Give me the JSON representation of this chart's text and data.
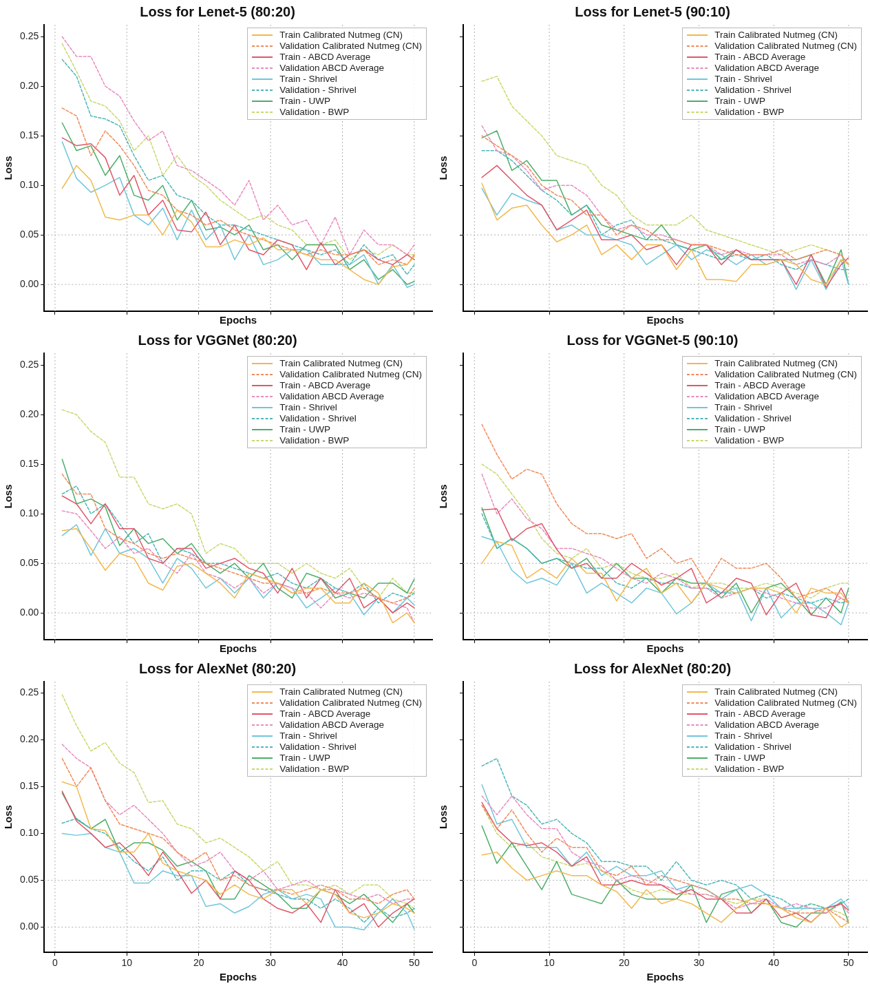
{
  "chart_data": [
    {
      "type": "line",
      "title": "Loss for Lenet-5 (80:20)",
      "xlabel": "Epochs",
      "ylabel": "Loss",
      "legend": "top right",
      "marker": "none",
      "grid": "x",
      "tick_labels": "y",
      "xlim": [
        -1.5,
        52.5
      ],
      "xticks": [
        0,
        10,
        20,
        30,
        40,
        50
      ],
      "ylim": [
        -0.027,
        0.262
      ],
      "yticks": [
        {
          "value": 0,
          "label": "0.00"
        },
        0.05,
        {
          "value": 0.1,
          "label": "0.10"
        },
        0.15,
        {
          "value": 0.2,
          "label": "0.20"
        },
        0.25
      ],
      "ref_lines": [
        {
          "axis": "y",
          "value": 0,
          "color": "#b0b0b0",
          "line_style": "dotted"
        },
        {
          "axis": "y",
          "value": 0.05,
          "color": "#b0b0b0",
          "line_style": "dotted"
        }
      ],
      "x": [
        1,
        3,
        5,
        7,
        9,
        11,
        13,
        15,
        17,
        19,
        21,
        23,
        25,
        27,
        29,
        31,
        33,
        35,
        37,
        39,
        41,
        43,
        45,
        47,
        49,
        50
      ],
      "series": [
        {
          "name": "Train Calibrated Nutmeg (CN)",
          "color": "#f2b84b",
          "line_style": "solid",
          "values": [
            0.097,
            0.12,
            0.105,
            0.068,
            0.065,
            0.07,
            0.07,
            0.05,
            0.075,
            0.063,
            0.038,
            0.038,
            0.045,
            0.04,
            0.047,
            0.035,
            0.035,
            0.03,
            0.025,
            0.025,
            0.015,
            0.005,
            0.0,
            0.018,
            0.02,
            0.028
          ]
        },
        {
          "name": "Validation Calibrated Nutmeg (CN)",
          "color": "#ef8a5a",
          "line_style": "dashed",
          "values": [
            0.178,
            0.17,
            0.13,
            0.155,
            0.14,
            0.12,
            0.095,
            0.09,
            0.075,
            0.07,
            0.06,
            0.065,
            0.055,
            0.05,
            0.045,
            0.04,
            0.035,
            0.03,
            0.035,
            0.03,
            0.03,
            0.035,
            0.02,
            0.025,
            0.02,
            0.03
          ]
        },
        {
          "name": "Train - ABCD Average",
          "color": "#e0566a",
          "line_style": "solid",
          "values": [
            0.148,
            0.14,
            0.142,
            0.128,
            0.09,
            0.11,
            0.07,
            0.085,
            0.055,
            0.053,
            0.073,
            0.04,
            0.06,
            0.035,
            0.03,
            0.045,
            0.04,
            0.015,
            0.042,
            0.02,
            0.03,
            0.035,
            0.025,
            0.02,
            0.03,
            0.025
          ]
        },
        {
          "name": "Validation ABCD Average",
          "color": "#e88bbd",
          "line_style": "dashed",
          "values": [
            0.25,
            0.23,
            0.23,
            0.2,
            0.19,
            0.165,
            0.145,
            0.155,
            0.12,
            0.115,
            0.105,
            0.095,
            0.08,
            0.105,
            0.065,
            0.08,
            0.06,
            0.065,
            0.04,
            0.068,
            0.03,
            0.055,
            0.04,
            0.04,
            0.03,
            0.04
          ]
        },
        {
          "name": "Train - Shrivel",
          "color": "#6ec6dc",
          "line_style": "solid",
          "values": [
            0.144,
            0.107,
            0.093,
            0.1,
            0.108,
            0.07,
            0.06,
            0.077,
            0.045,
            0.075,
            0.045,
            0.06,
            0.025,
            0.05,
            0.02,
            0.025,
            0.035,
            0.035,
            0.02,
            0.02,
            0.02,
            0.03,
            0.0,
            0.02,
            -0.003,
            0.0
          ]
        },
        {
          "name": "Validation - Shrivel",
          "color": "#4db6b8",
          "line_style": "dashed",
          "values": [
            0.227,
            0.21,
            0.17,
            0.167,
            0.16,
            0.13,
            0.105,
            0.11,
            0.09,
            0.085,
            0.07,
            0.06,
            0.06,
            0.055,
            0.05,
            0.045,
            0.04,
            0.035,
            0.03,
            0.035,
            0.02,
            0.04,
            0.025,
            0.03,
            0.01,
            0.02
          ]
        },
        {
          "name": "Train - UWP",
          "color": "#4cae6a",
          "line_style": "solid",
          "values": [
            0.163,
            0.135,
            0.14,
            0.11,
            0.13,
            0.09,
            0.085,
            0.1,
            0.065,
            0.085,
            0.055,
            0.058,
            0.05,
            0.06,
            0.035,
            0.04,
            0.025,
            0.04,
            0.04,
            0.04,
            0.015,
            0.025,
            0.005,
            0.015,
            0.0,
            0.003
          ]
        },
        {
          "name": "Validation - BWP",
          "color": "#c8d86c",
          "line_style": "dashed",
          "values": [
            0.243,
            0.215,
            0.185,
            0.18,
            0.165,
            0.135,
            0.15,
            0.11,
            0.13,
            0.11,
            0.1,
            0.085,
            0.075,
            0.065,
            0.07,
            0.06,
            0.055,
            0.04,
            0.04,
            0.045,
            0.025,
            0.035,
            0.03,
            0.04,
            0.03,
            0.03
          ]
        }
      ]
    },
    {
      "type": "line",
      "title": "Loss for Lenet-5 (90:10)",
      "xlabel": "Epochs",
      "ylabel": "Loss",
      "legend": "top right",
      "marker": "none",
      "grid": "x",
      "tick_labels": false,
      "xlim": [
        -1.5,
        52.5
      ],
      "xticks": [
        0,
        10,
        20,
        30,
        40,
        50
      ],
      "ylim": [
        -0.027,
        0.262
      ],
      "yticks": [
        0,
        0.05,
        0.1,
        0.15,
        0.2,
        0.25
      ],
      "ref_lines": [
        {
          "axis": "y",
          "value": 0,
          "color": "#b0b0b0",
          "line_style": "dotted"
        },
        {
          "axis": "y",
          "value": 0.05,
          "color": "#b0b0b0",
          "line_style": "dotted"
        }
      ],
      "x": [
        1,
        3,
        5,
        7,
        9,
        11,
        13,
        15,
        17,
        19,
        21,
        23,
        25,
        27,
        29,
        31,
        33,
        35,
        37,
        39,
        41,
        43,
        45,
        47,
        49,
        50
      ],
      "series": [
        {
          "name": "Train Calibrated Nutmeg (CN)",
          "color": "#f2b84b",
          "line_style": "solid",
          "values": [
            0.102,
            0.065,
            0.077,
            0.08,
            0.06,
            0.043,
            0.05,
            0.06,
            0.03,
            0.04,
            0.025,
            0.04,
            0.04,
            0.015,
            0.035,
            0.005,
            0.005,
            0.003,
            0.02,
            0.02,
            0.025,
            0.02,
            0.005,
            0.0,
            0.025,
            0.02
          ]
        },
        {
          "name": "Validation Calibrated Nutmeg (CN)",
          "color": "#ef8a5a",
          "line_style": "dashed",
          "values": [
            0.15,
            0.14,
            0.13,
            0.12,
            0.1,
            0.09,
            0.085,
            0.07,
            0.07,
            0.05,
            0.06,
            0.055,
            0.045,
            0.045,
            0.04,
            0.04,
            0.035,
            0.03,
            0.03,
            0.03,
            0.035,
            0.025,
            0.03,
            0.035,
            0.03,
            0.02
          ]
        },
        {
          "name": "Train - ABCD Average",
          "color": "#e0566a",
          "line_style": "solid",
          "values": [
            0.108,
            0.12,
            0.105,
            0.09,
            0.08,
            0.055,
            0.065,
            0.075,
            0.045,
            0.045,
            0.05,
            0.035,
            0.04,
            0.02,
            0.04,
            0.04,
            0.02,
            0.035,
            0.025,
            0.025,
            0.025,
            0.0,
            0.03,
            -0.003,
            0.02,
            0.027
          ]
        },
        {
          "name": "Validation ABCD Average",
          "color": "#e88bbd",
          "line_style": "dashed",
          "values": [
            0.16,
            0.135,
            0.13,
            0.115,
            0.095,
            0.1,
            0.1,
            0.09,
            0.07,
            0.055,
            0.06,
            0.05,
            0.05,
            0.045,
            0.04,
            0.04,
            0.03,
            0.035,
            0.03,
            0.03,
            0.03,
            0.02,
            0.025,
            0.02,
            0.03,
            0.02
          ]
        },
        {
          "name": "Train - Shrivel",
          "color": "#6ec6dc",
          "line_style": "solid",
          "values": [
            0.097,
            0.07,
            0.092,
            0.085,
            0.08,
            0.055,
            0.06,
            0.05,
            0.05,
            0.045,
            0.04,
            0.02,
            0.03,
            0.04,
            0.025,
            0.035,
            0.03,
            0.02,
            0.03,
            0.02,
            0.025,
            -0.005,
            0.025,
            -0.005,
            0.025,
            0.0
          ]
        },
        {
          "name": "Validation - Shrivel",
          "color": "#4db6b8",
          "line_style": "dashed",
          "values": [
            0.135,
            0.135,
            0.125,
            0.11,
            0.095,
            0.085,
            0.07,
            0.08,
            0.05,
            0.06,
            0.065,
            0.045,
            0.045,
            0.04,
            0.035,
            0.03,
            0.025,
            0.03,
            0.025,
            0.03,
            0.02,
            0.015,
            0.025,
            0.02,
            0.015,
            0.015
          ]
        },
        {
          "name": "Train - UWP",
          "color": "#4cae6a",
          "line_style": "solid",
          "values": [
            0.148,
            0.155,
            0.115,
            0.125,
            0.105,
            0.105,
            0.07,
            0.08,
            0.06,
            0.055,
            0.05,
            0.045,
            0.06,
            0.04,
            0.035,
            0.04,
            0.025,
            0.035,
            0.025,
            0.025,
            0.025,
            0.025,
            0.03,
            0.0,
            0.035,
            0.0
          ]
        },
        {
          "name": "Validation - BWP",
          "color": "#c8d86c",
          "line_style": "dashed",
          "values": [
            0.205,
            0.21,
            0.18,
            0.165,
            0.15,
            0.13,
            0.125,
            0.12,
            0.1,
            0.09,
            0.07,
            0.06,
            0.06,
            0.06,
            0.07,
            0.055,
            0.05,
            0.045,
            0.04,
            0.035,
            0.03,
            0.035,
            0.04,
            0.035,
            0.03,
            0.02
          ]
        }
      ]
    },
    {
      "type": "line",
      "title": "Loss for VGGNet (80:20)",
      "xlabel": "Epochs",
      "ylabel": "Loss",
      "legend": "top right",
      "marker": "none",
      "grid": "x",
      "tick_labels": "y",
      "xlim": [
        -1.5,
        52.5
      ],
      "xticks": [
        0,
        10,
        20,
        30,
        40,
        50
      ],
      "ylim": [
        -0.027,
        0.262
      ],
      "yticks": [
        {
          "value": 0,
          "label": "0.00"
        },
        0.05,
        {
          "value": 0.1,
          "label": "0.10"
        },
        0.15,
        {
          "value": 0.2,
          "label": "0.20"
        },
        0.25
      ],
      "ref_lines": [
        {
          "axis": "y",
          "value": 0,
          "color": "#b0b0b0",
          "line_style": "dotted"
        },
        {
          "axis": "y",
          "value": 0.05,
          "color": "#b0b0b0",
          "line_style": "dotted"
        }
      ],
      "x": [
        1,
        3,
        5,
        7,
        9,
        11,
        13,
        15,
        17,
        19,
        21,
        23,
        25,
        27,
        29,
        31,
        33,
        35,
        37,
        39,
        41,
        43,
        45,
        47,
        49,
        50
      ],
      "series": [
        {
          "name": "Train Calibrated Nutmeg (CN)",
          "color": "#f2b84b",
          "line_style": "solid",
          "values": [
            0.083,
            0.085,
            0.065,
            0.043,
            0.06,
            0.055,
            0.03,
            0.023,
            0.047,
            0.05,
            0.04,
            0.03,
            0.015,
            0.04,
            0.035,
            0.03,
            0.02,
            0.025,
            0.025,
            0.01,
            0.01,
            0.03,
            0.02,
            -0.01,
            0.0,
            -0.01
          ]
        },
        {
          "name": "Validation Calibrated Nutmeg (CN)",
          "color": "#ef8a5a",
          "line_style": "dashed",
          "values": [
            0.14,
            0.12,
            0.12,
            0.085,
            0.075,
            0.07,
            0.06,
            0.055,
            0.06,
            0.055,
            0.05,
            0.045,
            0.04,
            0.035,
            0.03,
            0.03,
            0.02,
            0.02,
            0.025,
            0.02,
            0.02,
            0.025,
            0.015,
            0.01,
            0.015,
            0.025
          ]
        },
        {
          "name": "Train - ABCD Average",
          "color": "#e0566a",
          "line_style": "solid",
          "values": [
            0.118,
            0.11,
            0.09,
            0.11,
            0.085,
            0.085,
            0.055,
            0.05,
            0.065,
            0.065,
            0.045,
            0.05,
            0.055,
            0.045,
            0.04,
            0.02,
            0.045,
            0.015,
            0.035,
            0.02,
            0.035,
            0.005,
            0.015,
            0.0,
            0.01,
            0.005
          ]
        },
        {
          "name": "Validation ABCD Average",
          "color": "#e88bbd",
          "line_style": "dashed",
          "values": [
            0.103,
            0.1,
            0.083,
            0.065,
            0.077,
            0.06,
            0.065,
            0.05,
            0.04,
            0.06,
            0.04,
            0.035,
            0.025,
            0.035,
            0.02,
            0.03,
            0.025,
            0.02,
            0.005,
            0.02,
            0.015,
            0.02,
            0.015,
            0.01,
            0.005,
            -0.01
          ]
        },
        {
          "name": "Train - Shrivel",
          "color": "#6ec6dc",
          "line_style": "solid",
          "values": [
            0.078,
            0.089,
            0.058,
            0.085,
            0.06,
            0.065,
            0.055,
            0.03,
            0.055,
            0.045,
            0.025,
            0.035,
            0.02,
            0.035,
            0.015,
            0.03,
            0.025,
            0.005,
            0.015,
            0.025,
            0.02,
            -0.002,
            0.015,
            0.0,
            0.015,
            0.008
          ]
        },
        {
          "name": "Validation - Shrivel",
          "color": "#4db6b8",
          "line_style": "dashed",
          "values": [
            0.12,
            0.128,
            0.1,
            0.11,
            0.09,
            0.07,
            0.08,
            0.05,
            0.065,
            0.06,
            0.05,
            0.05,
            0.045,
            0.04,
            0.035,
            0.04,
            0.03,
            0.025,
            0.035,
            0.025,
            0.02,
            0.03,
            0.01,
            0.02,
            0.015,
            0.02
          ]
        },
        {
          "name": "Train - UWP",
          "color": "#4cae6a",
          "line_style": "solid",
          "values": [
            0.155,
            0.11,
            0.115,
            0.107,
            0.068,
            0.085,
            0.07,
            0.075,
            0.06,
            0.07,
            0.05,
            0.04,
            0.05,
            0.035,
            0.05,
            0.025,
            0.015,
            0.04,
            0.035,
            0.015,
            0.02,
            0.015,
            0.03,
            0.03,
            0.02,
            0.034
          ]
        },
        {
          "name": "Validation - BWP",
          "color": "#c8d86c",
          "line_style": "dashed",
          "values": [
            0.205,
            0.2,
            0.183,
            0.172,
            0.137,
            0.137,
            0.11,
            0.105,
            0.11,
            0.1,
            0.06,
            0.07,
            0.065,
            0.05,
            0.05,
            0.05,
            0.04,
            0.05,
            0.04,
            0.035,
            0.045,
            0.025,
            0.015,
            0.035,
            0.02,
            0.02
          ]
        }
      ]
    },
    {
      "type": "line",
      "title": "Loss for VGGNet-5 (90:10)",
      "xlabel": "Epochs",
      "ylabel": "Loss",
      "legend": "top right",
      "marker": "none",
      "grid": "x",
      "tick_labels": false,
      "xlim": [
        -1.5,
        52.5
      ],
      "xticks": [
        0,
        10,
        20,
        30,
        40,
        50
      ],
      "ylim": [
        -0.027,
        0.262
      ],
      "yticks": [
        0,
        0.05,
        0.1,
        0.15,
        0.2,
        0.25
      ],
      "ref_lines": [
        {
          "axis": "y",
          "value": 0,
          "color": "#b0b0b0",
          "line_style": "dotted"
        },
        {
          "axis": "y",
          "value": 0.05,
          "color": "#b0b0b0",
          "line_style": "dotted"
        }
      ],
      "x": [
        1,
        3,
        5,
        7,
        9,
        11,
        13,
        15,
        17,
        19,
        21,
        23,
        25,
        27,
        29,
        31,
        33,
        35,
        37,
        39,
        41,
        43,
        45,
        47,
        49,
        50
      ],
      "series": [
        {
          "name": "Train Calibrated Nutmeg (CN)",
          "color": "#f2b84b",
          "line_style": "solid",
          "values": [
            0.05,
            0.072,
            0.068,
            0.035,
            0.045,
            0.035,
            0.055,
            0.04,
            0.04,
            0.012,
            0.035,
            0.045,
            0.02,
            0.03,
            0.01,
            0.03,
            0.025,
            0.02,
            0.025,
            0.025,
            0.02,
            0.0,
            0.025,
            0.02,
            0.02,
            0.01
          ]
        },
        {
          "name": "Validation Calibrated Nutmeg (CN)",
          "color": "#ef8a5a",
          "line_style": "dashed",
          "values": [
            0.19,
            0.16,
            0.135,
            0.145,
            0.14,
            0.11,
            0.09,
            0.08,
            0.08,
            0.075,
            0.08,
            0.055,
            0.065,
            0.05,
            0.055,
            0.03,
            0.055,
            0.045,
            0.045,
            0.05,
            0.035,
            0.015,
            0.02,
            0.025,
            0.015,
            0.01
          ]
        },
        {
          "name": "Train - ABCD Average",
          "color": "#e0566a",
          "line_style": "solid",
          "values": [
            0.104,
            0.105,
            0.073,
            0.085,
            0.09,
            0.064,
            0.045,
            0.05,
            0.035,
            0.035,
            0.05,
            0.04,
            0.028,
            0.035,
            0.045,
            0.01,
            0.02,
            0.035,
            0.03,
            -0.002,
            0.02,
            0.03,
            -0.002,
            -0.005,
            0.025,
            0.01
          ]
        },
        {
          "name": "Validation ABCD Average",
          "color": "#e88bbd",
          "line_style": "dashed",
          "values": [
            0.14,
            0.1,
            0.115,
            0.095,
            0.085,
            0.065,
            0.065,
            0.06,
            0.055,
            0.045,
            0.035,
            0.03,
            0.04,
            0.035,
            0.025,
            0.025,
            0.015,
            0.02,
            0.025,
            0.02,
            0.015,
            0.01,
            0.005,
            0.005,
            0.015,
            0.01
          ]
        },
        {
          "name": "Train - Shrivel",
          "color": "#6ec6dc",
          "line_style": "solid",
          "values": [
            0.077,
            0.072,
            0.043,
            0.03,
            0.035,
            0.028,
            0.05,
            0.02,
            0.03,
            0.02,
            0.01,
            0.025,
            0.02,
            -0.001,
            0.01,
            0.03,
            0.02,
            0.025,
            -0.008,
            0.025,
            -0.005,
            0.01,
            0.01,
            0.0,
            -0.012,
            0.01
          ]
        },
        {
          "name": "Validation - Shrivel",
          "color": "#4db6b8",
          "line_style": "dashed",
          "values": [
            0.1,
            0.065,
            0.075,
            0.065,
            0.05,
            0.055,
            0.05,
            0.045,
            0.045,
            0.03,
            0.025,
            0.035,
            0.03,
            0.03,
            0.025,
            0.025,
            0.02,
            0.02,
            0.025,
            0.015,
            0.02,
            0.015,
            0.01,
            0.015,
            0.01,
            0.012
          ]
        },
        {
          "name": "Train - UWP",
          "color": "#4cae6a",
          "line_style": "solid",
          "values": [
            0.106,
            0.065,
            0.075,
            0.065,
            0.05,
            0.055,
            0.045,
            0.055,
            0.035,
            0.05,
            0.035,
            0.035,
            0.02,
            0.035,
            0.03,
            0.03,
            0.015,
            0.03,
            0.0,
            0.025,
            0.03,
            0.015,
            -0.002,
            0.015,
            0.0,
            0.025
          ]
        },
        {
          "name": "Validation - BWP",
          "color": "#c8d86c",
          "line_style": "dashed",
          "values": [
            0.15,
            0.14,
            0.12,
            0.1,
            0.075,
            0.06,
            0.055,
            0.065,
            0.045,
            0.05,
            0.04,
            0.035,
            0.035,
            0.04,
            0.025,
            0.03,
            0.03,
            0.025,
            0.025,
            0.03,
            0.025,
            0.02,
            0.015,
            0.025,
            0.03,
            0.03
          ]
        }
      ]
    },
    {
      "type": "line",
      "title": "Loss for AlexNet (80:20)",
      "xlabel": "Epochs",
      "ylabel": "Loss",
      "legend": "top right",
      "marker": "none",
      "grid": "x",
      "xlim": [
        -1.5,
        52.5
      ],
      "xticks": [
        0,
        10,
        20,
        30,
        40,
        50
      ],
      "ylim": [
        -0.027,
        0.262
      ],
      "yticks": [
        {
          "value": 0,
          "label": "0.00"
        },
        0.05,
        {
          "value": 0.1,
          "label": "0.10"
        },
        0.15,
        {
          "value": 0.2,
          "label": "0.20"
        },
        0.25
      ],
      "ref_lines": [
        {
          "axis": "y",
          "value": 0,
          "color": "#b0b0b0",
          "line_style": "dotted"
        },
        {
          "axis": "y",
          "value": 0.05,
          "color": "#b0b0b0",
          "line_style": "dotted"
        }
      ],
      "x": [
        1,
        3,
        5,
        7,
        9,
        11,
        13,
        15,
        17,
        19,
        21,
        23,
        25,
        27,
        29,
        31,
        33,
        35,
        37,
        39,
        41,
        43,
        45,
        47,
        49,
        50
      ],
      "series": [
        {
          "name": "Train Calibrated Nutmeg (CN)",
          "color": "#f2b84b",
          "line_style": "solid",
          "values": [
            0.155,
            0.15,
            0.105,
            0.103,
            0.08,
            0.08,
            0.1,
            0.068,
            0.06,
            0.055,
            0.05,
            0.035,
            0.045,
            0.035,
            0.03,
            0.04,
            0.04,
            0.025,
            0.04,
            0.035,
            0.015,
            0.01,
            0.015,
            0.025,
            0.02,
            0.015
          ]
        },
        {
          "name": "Validation Calibrated Nutmeg (CN)",
          "color": "#ef8a5a",
          "line_style": "dashed",
          "values": [
            0.18,
            0.15,
            0.17,
            0.135,
            0.11,
            0.105,
            0.1,
            0.095,
            0.08,
            0.07,
            0.08,
            0.05,
            0.055,
            0.045,
            0.04,
            0.04,
            0.035,
            0.04,
            0.045,
            0.04,
            0.03,
            0.03,
            0.025,
            0.035,
            0.04,
            0.03
          ]
        },
        {
          "name": "Train - ABCD Average",
          "color": "#e0566a",
          "line_style": "solid",
          "values": [
            0.145,
            0.113,
            0.1,
            0.085,
            0.09,
            0.075,
            0.055,
            0.08,
            0.06,
            0.036,
            0.05,
            0.03,
            0.06,
            0.05,
            0.03,
            0.02,
            0.015,
            0.025,
            0.005,
            0.04,
            0.015,
            0.025,
            0.0,
            0.015,
            0.025,
            0.03
          ]
        },
        {
          "name": "Validation ABCD Average",
          "color": "#e88bbd",
          "line_style": "dashed",
          "values": [
            0.195,
            0.18,
            0.17,
            0.135,
            0.12,
            0.13,
            0.115,
            0.1,
            0.08,
            0.065,
            0.07,
            0.08,
            0.06,
            0.05,
            0.06,
            0.04,
            0.045,
            0.05,
            0.04,
            0.04,
            0.035,
            0.03,
            0.035,
            0.025,
            0.03,
            0.03
          ]
        },
        {
          "name": "Train - Shrivel",
          "color": "#6ec6dc",
          "line_style": "solid",
          "values": [
            0.1,
            0.098,
            0.1,
            0.085,
            0.08,
            0.047,
            0.047,
            0.06,
            0.055,
            0.055,
            0.022,
            0.025,
            0.015,
            0.022,
            0.035,
            0.04,
            0.03,
            0.035,
            0.03,
            0.0,
            0.0,
            -0.003,
            0.015,
            0.03,
            0.015,
            -0.002
          ]
        },
        {
          "name": "Validation - Shrivel",
          "color": "#4db6b8",
          "line_style": "dashed",
          "values": [
            0.111,
            0.116,
            0.105,
            0.1,
            0.085,
            0.07,
            0.06,
            0.075,
            0.05,
            0.06,
            0.06,
            0.05,
            0.06,
            0.045,
            0.04,
            0.035,
            0.03,
            0.03,
            0.02,
            0.03,
            0.02,
            0.005,
            0.02,
            0.01,
            0.015,
            0.02
          ]
        },
        {
          "name": "Train - UWP",
          "color": "#4cae6a",
          "line_style": "solid",
          "values": [
            0.143,
            0.115,
            0.105,
            0.115,
            0.08,
            0.09,
            0.09,
            0.082,
            0.065,
            0.07,
            0.06,
            0.03,
            0.03,
            0.055,
            0.045,
            0.035,
            0.02,
            0.02,
            0.04,
            0.035,
            0.025,
            0.035,
            0.02,
            0.005,
            0.025,
            0.015
          ]
        },
        {
          "name": "Validation - BWP",
          "color": "#c8d86c",
          "line_style": "dashed",
          "values": [
            0.248,
            0.215,
            0.188,
            0.197,
            0.175,
            0.165,
            0.133,
            0.135,
            0.11,
            0.105,
            0.09,
            0.095,
            0.085,
            0.075,
            0.06,
            0.07,
            0.045,
            0.045,
            0.04,
            0.045,
            0.035,
            0.045,
            0.045,
            0.03,
            0.025,
            0.02
          ]
        }
      ]
    },
    {
      "type": "line",
      "title": "Loss for AlexNet (80:20)",
      "xlabel": "Epochs",
      "ylabel": "Loss",
      "legend": "top right",
      "marker": "none",
      "grid": "x",
      "tick_labels": "x",
      "xlim": [
        -1.5,
        52.5
      ],
      "xticks": [
        0,
        10,
        20,
        30,
        40,
        50
      ],
      "ylim": [
        -0.027,
        0.262
      ],
      "yticks": [
        0,
        0.05,
        0.1,
        0.15,
        0.2,
        0.25
      ],
      "ref_lines": [
        {
          "axis": "y",
          "value": 0,
          "color": "#b0b0b0",
          "line_style": "dotted"
        },
        {
          "axis": "y",
          "value": 0.05,
          "color": "#b0b0b0",
          "line_style": "dotted"
        }
      ],
      "x": [
        1,
        3,
        5,
        7,
        9,
        11,
        13,
        15,
        17,
        19,
        21,
        23,
        25,
        27,
        29,
        31,
        33,
        35,
        37,
        39,
        41,
        43,
        45,
        47,
        49,
        50
      ],
      "series": [
        {
          "name": "Train Calibrated Nutmeg (CN)",
          "color": "#f2b84b",
          "line_style": "solid",
          "values": [
            0.077,
            0.08,
            0.063,
            0.05,
            0.055,
            0.06,
            0.055,
            0.055,
            0.045,
            0.038,
            0.02,
            0.04,
            0.025,
            0.03,
            0.025,
            0.015,
            0.005,
            0.02,
            0.03,
            0.025,
            0.02,
            0.01,
            0.005,
            0.02,
            0.0,
            0.005
          ]
        },
        {
          "name": "Validation Calibrated Nutmeg (CN)",
          "color": "#ef8a5a",
          "line_style": "dashed",
          "values": [
            0.13,
            0.105,
            0.125,
            0.1,
            0.08,
            0.095,
            0.085,
            0.085,
            0.06,
            0.055,
            0.065,
            0.045,
            0.055,
            0.05,
            0.045,
            0.04,
            0.03,
            0.03,
            0.025,
            0.025,
            0.02,
            0.015,
            0.015,
            0.02,
            0.01,
            0.005
          ]
        },
        {
          "name": "Train - ABCD Average",
          "color": "#e0566a",
          "line_style": "solid",
          "values": [
            0.133,
            0.105,
            0.09,
            0.087,
            0.09,
            0.08,
            0.065,
            0.075,
            0.045,
            0.045,
            0.05,
            0.045,
            0.045,
            0.035,
            0.04,
            0.03,
            0.03,
            0.015,
            0.015,
            0.03,
            0.01,
            0.015,
            0.005,
            0.02,
            0.025,
            0.018
          ]
        },
        {
          "name": "Validation ABCD Average",
          "color": "#e88bbd",
          "line_style": "dashed",
          "values": [
            0.14,
            0.12,
            0.14,
            0.12,
            0.105,
            0.105,
            0.08,
            0.07,
            0.065,
            0.05,
            0.055,
            0.05,
            0.045,
            0.04,
            0.035,
            0.035,
            0.03,
            0.02,
            0.025,
            0.03,
            0.02,
            0.025,
            0.02,
            0.015,
            0.025,
            0.015
          ]
        },
        {
          "name": "Train - Shrivel",
          "color": "#6ec6dc",
          "line_style": "solid",
          "values": [
            0.152,
            0.11,
            0.115,
            0.085,
            0.085,
            0.085,
            0.065,
            0.08,
            0.055,
            0.065,
            0.055,
            0.055,
            0.06,
            0.04,
            0.045,
            0.04,
            0.03,
            0.04,
            0.045,
            0.035,
            0.02,
            0.02,
            0.02,
            0.02,
            0.03,
            0.02
          ]
        },
        {
          "name": "Validation - Shrivel",
          "color": "#4db6b8",
          "line_style": "dashed",
          "values": [
            0.172,
            0.18,
            0.14,
            0.13,
            0.11,
            0.115,
            0.1,
            0.09,
            0.07,
            0.07,
            0.065,
            0.065,
            0.05,
            0.07,
            0.05,
            0.045,
            0.05,
            0.045,
            0.03,
            0.035,
            0.03,
            0.02,
            0.025,
            0.02,
            0.025,
            0.03
          ]
        },
        {
          "name": "Train - UWP",
          "color": "#4cae6a",
          "line_style": "solid",
          "values": [
            0.108,
            0.068,
            0.09,
            0.065,
            0.04,
            0.07,
            0.035,
            0.03,
            0.025,
            0.05,
            0.035,
            0.03,
            0.03,
            0.03,
            0.045,
            0.005,
            0.035,
            0.04,
            0.015,
            0.03,
            0.005,
            0.0,
            0.015,
            0.015,
            0.027,
            0.005
          ]
        },
        {
          "name": "Validation - BWP",
          "color": "#c8d86c",
          "line_style": "dashed",
          "values": [
            0.13,
            0.1,
            0.085,
            0.09,
            0.075,
            0.07,
            0.065,
            0.068,
            0.06,
            0.05,
            0.04,
            0.035,
            0.04,
            0.035,
            0.035,
            0.035,
            0.03,
            0.025,
            0.03,
            0.03,
            0.01,
            0.015,
            0.025,
            0.02,
            0.015,
            0.01
          ]
        }
      ]
    }
  ]
}
